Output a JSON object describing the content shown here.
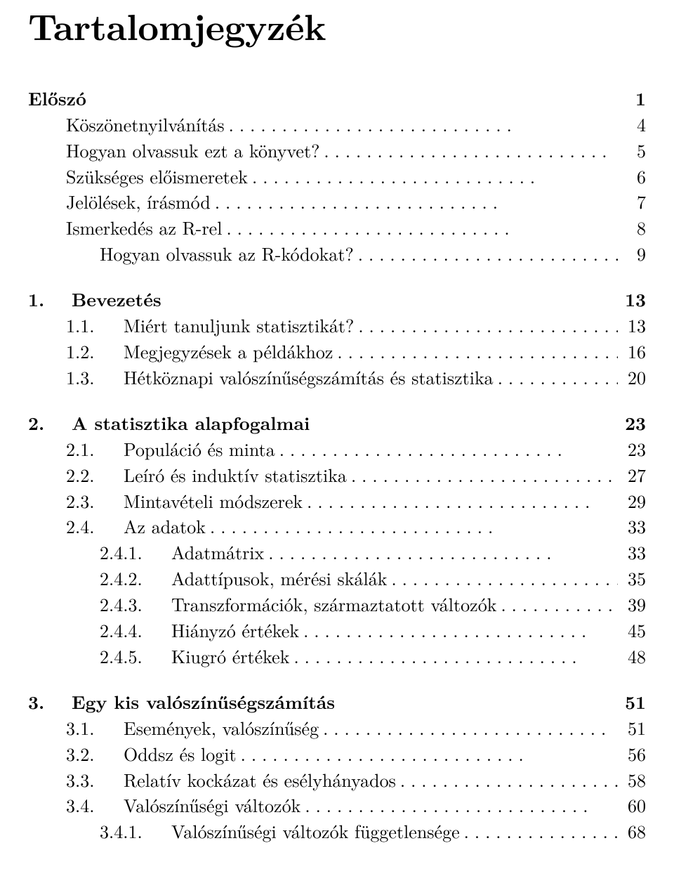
{
  "title": "Tartalomjegyzék",
  "colors": {
    "text": "#000000",
    "background": "#ffffff"
  },
  "typography": {
    "body_fontsize": 26,
    "title_fontsize": 52,
    "font_family": "Latin Modern / Computer Modern serif"
  },
  "toc": [
    {
      "heading": {
        "label": "Előszó",
        "page": "1"
      },
      "items": [
        {
          "label": "Köszönetnyilvánítás",
          "page": "4"
        },
        {
          "label": "Hogyan olvassuk ezt a könyvet?",
          "page": "5"
        },
        {
          "label": "Szükséges előismeretek",
          "page": "6"
        },
        {
          "label": "Jelölések, írásmód",
          "page": "7"
        },
        {
          "label": "Ismerkedés az R-rel",
          "page": "8"
        },
        {
          "label": "Hogyan olvassuk az R-kódokat?",
          "page": "9",
          "indent": true
        }
      ]
    },
    {
      "heading": {
        "num": "1.",
        "label": "Bevezetés",
        "page": "13"
      },
      "items": [
        {
          "num": "1.1.",
          "label": "Miért tanuljunk statisztikát?",
          "page": "13"
        },
        {
          "num": "1.2.",
          "label": "Megjegyzések a példákhoz",
          "page": "16"
        },
        {
          "num": "1.3.",
          "label": "Hétköznapi valószínűségszámítás és statisztika",
          "page": "20"
        }
      ]
    },
    {
      "heading": {
        "num": "2.",
        "label": "A statisztika alapfogalmai",
        "page": "23"
      },
      "items": [
        {
          "num": "2.1.",
          "label": "Populáció és minta",
          "page": "23"
        },
        {
          "num": "2.2.",
          "label": "Leíró és induktív statisztika",
          "page": "27"
        },
        {
          "num": "2.3.",
          "label": "Mintavételi módszerek",
          "page": "29"
        },
        {
          "num": "2.4.",
          "label": "Az adatok",
          "page": "33"
        },
        {
          "num": "2.4.1.",
          "label": "Adatmátrix",
          "page": "33",
          "sub": true
        },
        {
          "num": "2.4.2.",
          "label": "Adattípusok, mérési skálák",
          "page": "35",
          "sub": true
        },
        {
          "num": "2.4.3.",
          "label": "Transzformációk, származtatott változók",
          "page": "39",
          "sub": true
        },
        {
          "num": "2.4.4.",
          "label": "Hiányzó értékek",
          "page": "45",
          "sub": true
        },
        {
          "num": "2.4.5.",
          "label": "Kiugró értékek",
          "page": "48",
          "sub": true
        }
      ]
    },
    {
      "heading": {
        "num": "3.",
        "label": "Egy kis valószínűségszámítás",
        "page": "51"
      },
      "items": [
        {
          "num": "3.1.",
          "label": "Események, valószínűség",
          "page": "51"
        },
        {
          "num": "3.2.",
          "label": "Oddsz és logit",
          "page": "56"
        },
        {
          "num": "3.3.",
          "label": "Relatív kockázat és esélyhányados",
          "page": "58"
        },
        {
          "num": "3.4.",
          "label": "Valószínűségi változók",
          "page": "60"
        },
        {
          "num": "3.4.1.",
          "label": "Valószínűségi változók függetlensége",
          "page": "68",
          "sub": true
        }
      ]
    }
  ]
}
